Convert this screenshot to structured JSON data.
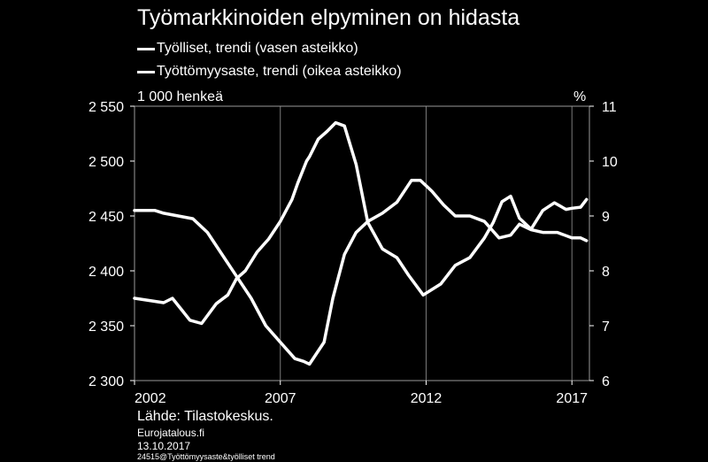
{
  "chart_data": {
    "type": "line",
    "title": "Työmarkkinoiden elpyminen on hidasta",
    "left_unit": "1 000 henkeä",
    "right_unit": "%",
    "y_left_lim": [
      2300,
      2550
    ],
    "y_right_lim": [
      6,
      11
    ],
    "y_left_ticks": [
      "2 300",
      "2 350",
      "2 400",
      "2 450",
      "2 500",
      "2 550"
    ],
    "y_right_ticks": [
      "6",
      "7",
      "8",
      "9",
      "10",
      "11"
    ],
    "x_ticks": [
      "2002",
      "2007",
      "2012",
      "2017"
    ],
    "x_lim": [
      2002,
      2017.6
    ],
    "grid": true,
    "series": [
      {
        "name": "Työlliset, trendi (vasen asteikko)",
        "axis": "left",
        "color": "#ffffff",
        "x": [
          2002.0,
          2002.5,
          2003.0,
          2003.3,
          2003.6,
          2003.9,
          2004.3,
          2004.8,
          2005.2,
          2005.5,
          2005.8,
          2006.2,
          2006.6,
          2007.0,
          2007.4,
          2007.6,
          2007.9,
          2008.0,
          2008.3,
          2008.6,
          2008.9,
          2009.2,
          2009.6,
          2010.0,
          2010.5,
          2011.0,
          2011.4,
          2011.9,
          2012.5,
          2013.0,
          2013.5,
          2014.0,
          2014.3,
          2014.6,
          2014.9,
          2015.2,
          2015.6,
          2016.0,
          2016.4,
          2016.8,
          2017.0,
          2017.3,
          2017.5
        ],
        "values": [
          2375,
          2373,
          2371,
          2375,
          2365,
          2355,
          2352,
          2370,
          2378,
          2393,
          2400,
          2417,
          2429,
          2445,
          2465,
          2480,
          2500,
          2504,
          2520,
          2527,
          2535,
          2532,
          2497,
          2444,
          2420,
          2412,
          2396,
          2378,
          2388,
          2405,
          2412,
          2430,
          2444,
          2463,
          2468,
          2448,
          2438,
          2455,
          2462,
          2456,
          2457,
          2458,
          2465
        ]
      },
      {
        "name": "Työttömyysaste, trendi (oikea asteikko)",
        "axis": "right",
        "color": "#ffffff",
        "x": [
          2002.0,
          2002.7,
          2003.0,
          2003.5,
          2004.0,
          2004.5,
          2005.0,
          2005.5,
          2006.0,
          2006.5,
          2007.0,
          2007.5,
          2007.8,
          2008.0,
          2008.5,
          2008.8,
          2009.2,
          2009.6,
          2010.0,
          2010.5,
          2011.0,
          2011.5,
          2011.8,
          2012.2,
          2012.6,
          2013.0,
          2013.5,
          2014.0,
          2014.5,
          2014.9,
          2015.2,
          2015.6,
          2016.0,
          2016.5,
          2017.0,
          2017.3,
          2017.5
        ],
        "values": [
          9.1,
          9.1,
          9.05,
          9.0,
          8.95,
          8.7,
          8.3,
          7.9,
          7.5,
          7.0,
          6.7,
          6.4,
          6.35,
          6.3,
          6.7,
          7.5,
          8.3,
          8.7,
          8.9,
          9.05,
          9.25,
          9.65,
          9.65,
          9.45,
          9.2,
          9.0,
          9.0,
          8.9,
          8.6,
          8.65,
          8.85,
          8.75,
          8.7,
          8.7,
          8.6,
          8.6,
          8.55
        ]
      }
    ]
  },
  "source": "Lähde: Tilastokeskus.",
  "publisher": "Eurojatalous.fi",
  "date": "13.10.2017",
  "file_ref": "24515@Työttömyysaste&työlliset trend"
}
